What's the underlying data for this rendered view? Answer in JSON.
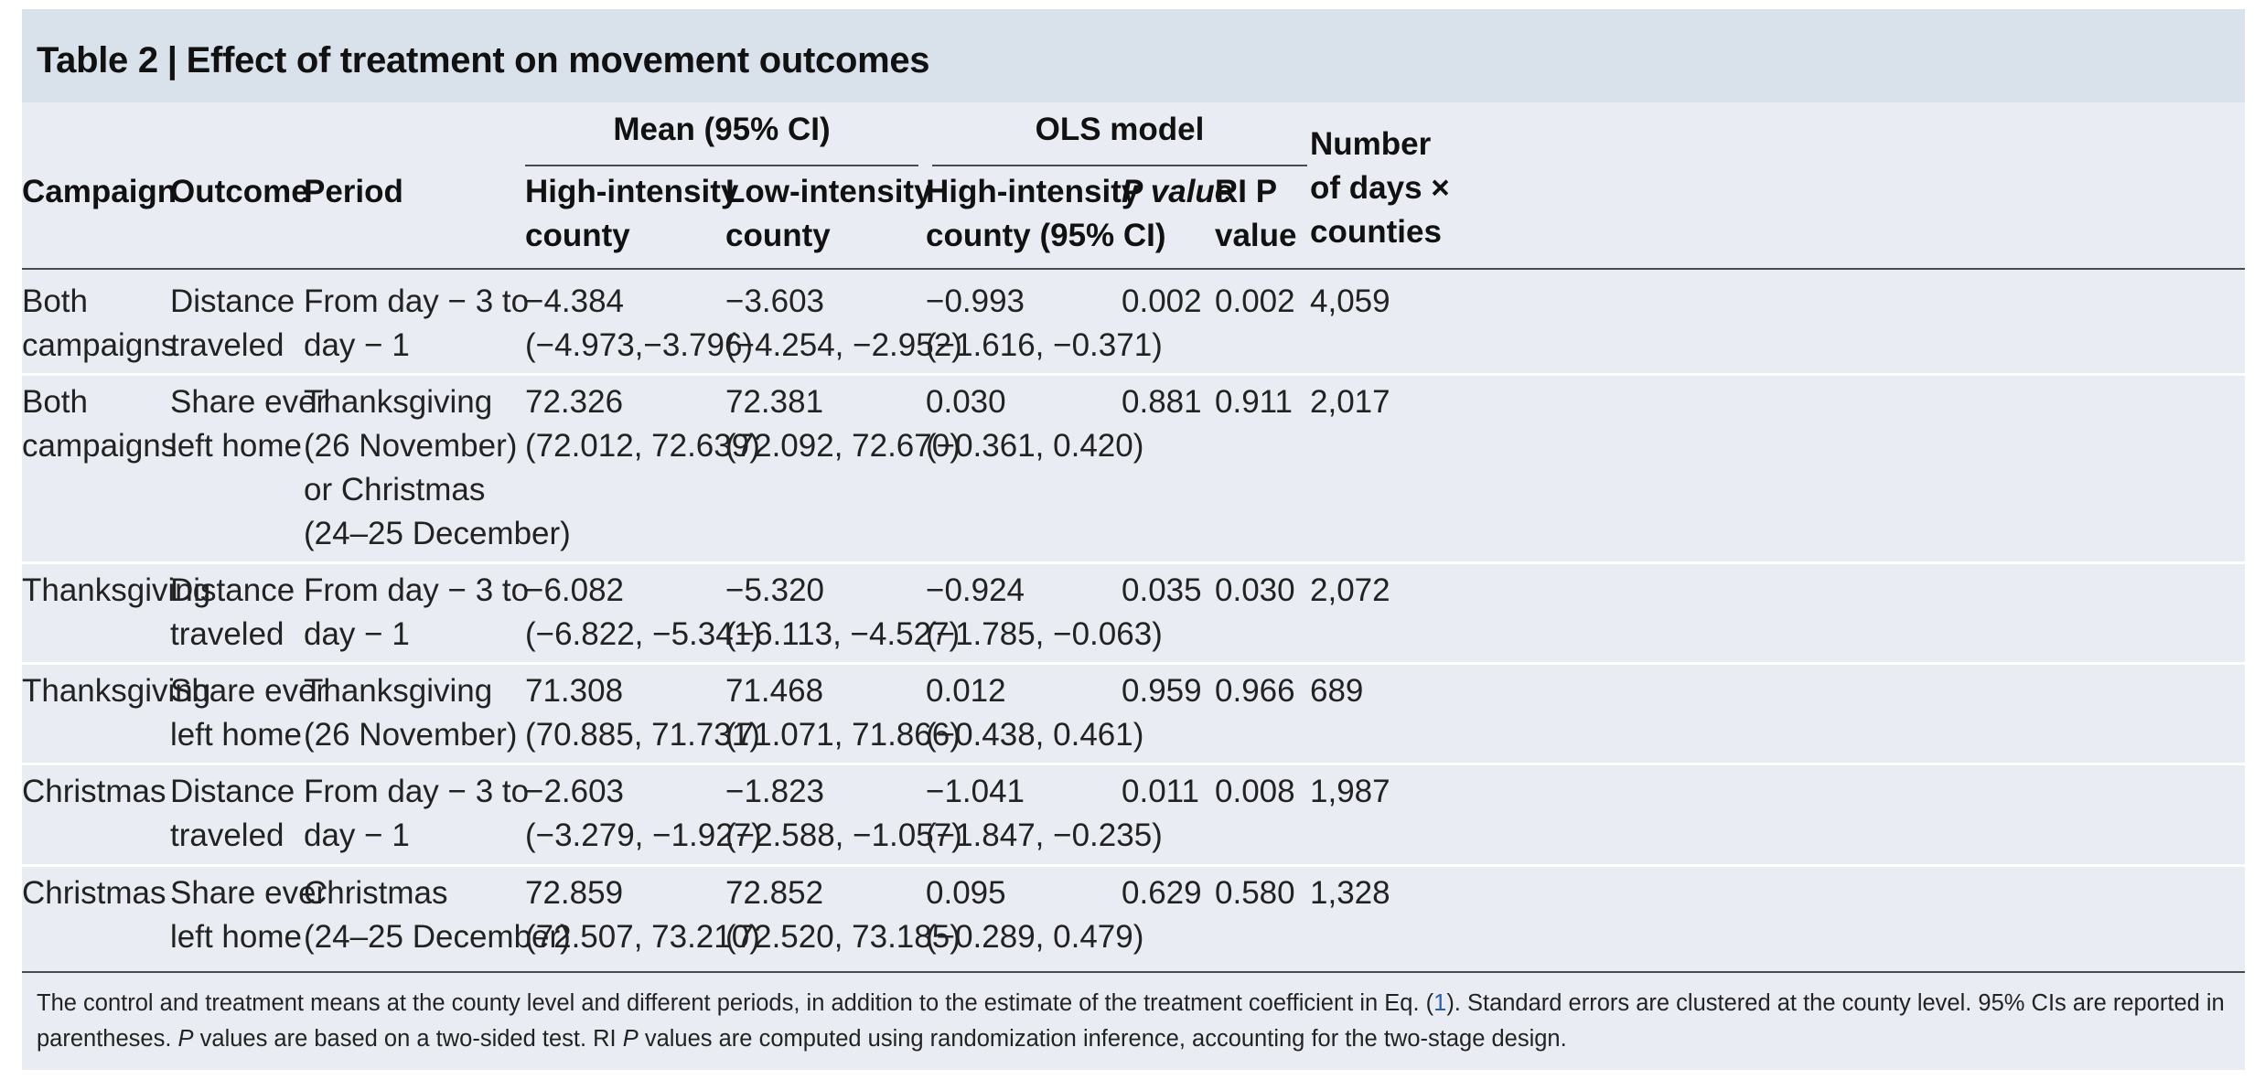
{
  "table": {
    "label": "Table 2",
    "separator": "|",
    "title": "Effect of treatment on movement outcomes",
    "group_headers": {
      "mean": "Mean (95% CI)",
      "ols": "OLS model"
    },
    "columns": {
      "campaign": "Campaign",
      "outcome": "Outcome",
      "period": "Period",
      "high_l1": "High-intensity",
      "high_l2": "county",
      "low_l1": "Low-intensity",
      "low_l2": "county",
      "ols_l1": "High-intensity",
      "ols_l2": "county (95% CI)",
      "p_l1": "P value",
      "ri_l1": "RI P",
      "ri_l2": "value",
      "n_l1": "Number",
      "n_l2": "of days ×",
      "n_l3": "counties"
    },
    "rows": [
      {
        "campaign": [
          "Both",
          "campaigns"
        ],
        "outcome": [
          "Distance",
          "traveled"
        ],
        "period": [
          "From day − 3 to",
          "day − 1"
        ],
        "high": [
          "−4.384",
          "(−4.973,−3.796)"
        ],
        "low": [
          "−3.603",
          "(−4.254, −2.952)"
        ],
        "ols": [
          "−0.993",
          "(−1.616, −0.371)"
        ],
        "p": "0.002",
        "ri": "0.002",
        "n": "4,059"
      },
      {
        "campaign": [
          "Both",
          "campaigns"
        ],
        "outcome": [
          "Share ever",
          "left home"
        ],
        "period": [
          "Thanksgiving",
          "(26 November)",
          "or Christmas",
          "(24–25 December)"
        ],
        "high": [
          "72.326",
          "(72.012, 72.639)"
        ],
        "low": [
          "72.381",
          "(72.092, 72.670)"
        ],
        "ols": [
          "0.030",
          "(−0.361, 0.420)"
        ],
        "p": "0.881",
        "ri": "0.911",
        "n": "2,017"
      },
      {
        "campaign": [
          "Thanksgiving"
        ],
        "outcome": [
          "Distance",
          "traveled"
        ],
        "period": [
          "From day − 3 to",
          "day − 1"
        ],
        "high": [
          "−6.082",
          "(−6.822, −5.341)"
        ],
        "low": [
          "−5.320",
          "(−6.113, −4.527)"
        ],
        "ols": [
          "−0.924",
          "(−1.785, −0.063)"
        ],
        "p": "0.035",
        "ri": "0.030",
        "n": "2,072"
      },
      {
        "campaign": [
          "Thanksgiving"
        ],
        "outcome": [
          "Share ever",
          "left home"
        ],
        "period": [
          "Thanksgiving",
          "(26 November)"
        ],
        "high": [
          "71.308",
          "(70.885, 71.731)"
        ],
        "low": [
          "71.468",
          "(71.071, 71.866)"
        ],
        "ols": [
          "0.012",
          "(−0.438, 0.461)"
        ],
        "p": "0.959",
        "ri": "0.966",
        "n": "689"
      },
      {
        "campaign": [
          "Christmas"
        ],
        "outcome": [
          "Distance",
          "traveled"
        ],
        "period": [
          "From day − 3 to",
          "day − 1"
        ],
        "high": [
          "−2.603",
          "(−3.279, −1.927)"
        ],
        "low": [
          "−1.823",
          "(−2.588, −1.057)"
        ],
        "ols": [
          "−1.041",
          "(−1.847, −0.235)"
        ],
        "p": "0.011",
        "ri": "0.008",
        "n": "1,987"
      },
      {
        "campaign": [
          "Christmas"
        ],
        "outcome": [
          "Share ever",
          "left home"
        ],
        "period": [
          "Christmas",
          "(24–25 December)"
        ],
        "high": [
          "72.859",
          "(72.507, 73.210)"
        ],
        "low": [
          "72.852",
          "(72.520, 73.185)"
        ],
        "ols": [
          "0.095",
          "(−0.289, 0.479)"
        ],
        "p": "0.629",
        "ri": "0.580",
        "n": "1,328"
      }
    ],
    "footnote": {
      "part1": "The control and treatment means at the county level and different periods, in addition to the estimate of the treatment coefficient in Eq. (",
      "ref": "1",
      "part2": "). Standard errors are clustered at the county level. 95% CIs are reported in parentheses. ",
      "p_italic": "P",
      "part3": " values are based on a two-sided test. RI ",
      "p_italic2": "P",
      "part4": " values are computed using randomization inference, accounting for the two-stage design."
    }
  }
}
